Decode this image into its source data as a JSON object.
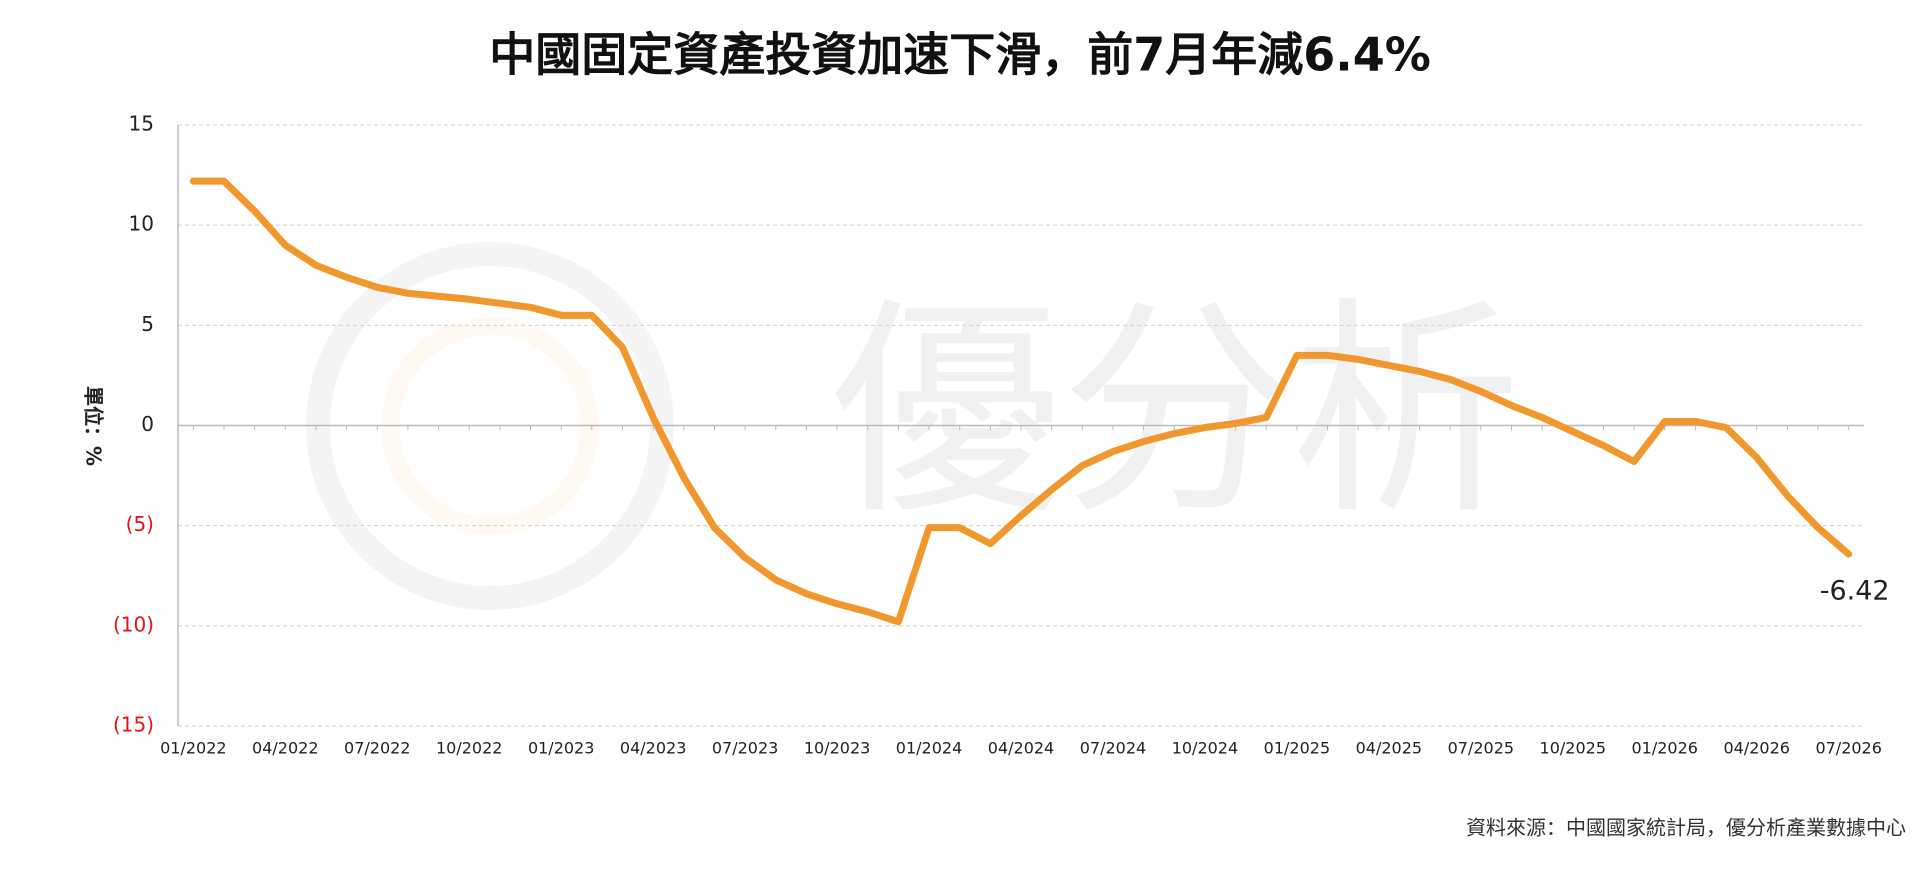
{
  "chart_data": {
    "type": "line",
    "title": "中國固定資產投資加速下滑，前7月年減6.4%",
    "y_label": "單位：%",
    "watermark": "優分析",
    "source": "資料來源：中國國家統計局，優分析產業數據中心",
    "x": [
      "01/2022",
      null,
      null,
      "04/2022",
      null,
      null,
      "07/2022",
      null,
      null,
      "10/2022",
      null,
      null,
      "01/2023",
      null,
      null,
      "04/2023",
      null,
      null,
      "07/2023",
      null,
      null,
      "10/2023",
      null,
      null,
      "01/2024",
      null,
      null,
      "04/2024",
      null,
      null,
      "07/2024",
      null,
      null,
      "10/2024",
      null,
      null,
      "01/2025",
      null,
      null,
      "04/2025",
      null,
      null,
      "07/2025",
      null,
      null,
      "10/2025",
      null,
      null,
      "01/2026",
      null,
      null,
      "04/2026",
      null,
      null,
      "07/2026"
    ],
    "series": [
      {
        "color": "#f0982e",
        "values": [
          12.2,
          12.2,
          10.7,
          9.0,
          8.0,
          7.4,
          6.9,
          6.6,
          6.45,
          6.3,
          6.1,
          5.9,
          5.5,
          5.5,
          3.9,
          0.4,
          -2.6,
          -5.1,
          -6.6,
          -7.7,
          -8.4,
          -8.9,
          -9.3,
          -9.8,
          -5.1,
          -5.1,
          -5.9,
          -4.5,
          -3.2,
          -2.0,
          -1.3,
          -0.8,
          -0.4,
          -0.1,
          0.1,
          0.4,
          3.5,
          3.5,
          3.3,
          3.0,
          2.7,
          2.3,
          1.7,
          1.0,
          0.4,
          -0.3,
          -1.0,
          -1.8,
          0.2,
          0.2,
          -0.1,
          -1.6,
          -3.5,
          -5.1,
          -6.42
        ]
      }
    ],
    "ylim": [
      -15,
      15
    ],
    "yticks": [
      {
        "value": -15,
        "label": "(15)"
      },
      {
        "value": -10,
        "label": "(10)"
      },
      {
        "value": -5,
        "label": "(5)"
      },
      0,
      5,
      10,
      15
    ],
    "negative_tick_color": "#e0141e",
    "grid": true
  }
}
